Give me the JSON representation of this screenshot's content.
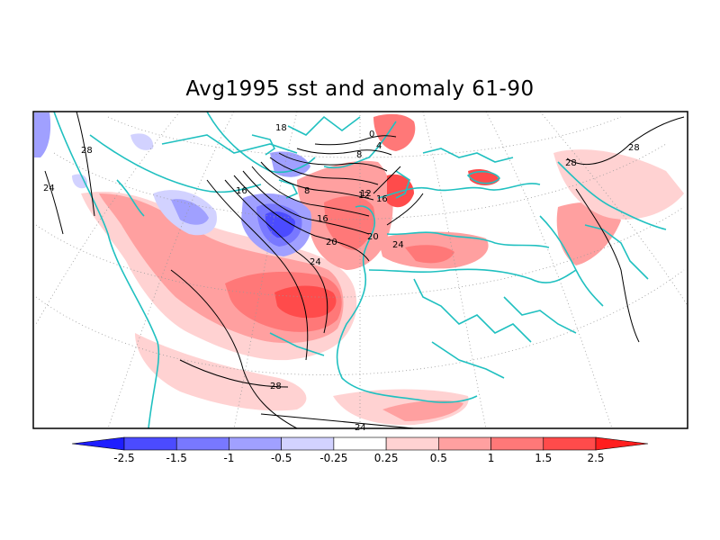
{
  "title": "Avg1995 sst and anomaly 61-90",
  "contour_labels": [
    "28",
    "24",
    "28",
    "28",
    "16",
    "12",
    "8",
    "4",
    "0",
    "8",
    "12",
    "16",
    "20",
    "24",
    "16",
    "20",
    "24",
    "18",
    "28",
    "24",
    "24",
    "28"
  ],
  "colorbar": {
    "tick_labels": [
      "-2.5",
      "-1.5",
      "-1",
      "-0.5",
      "-0.25",
      "0.25",
      "0.5",
      "1",
      "1.5",
      "2.5"
    ],
    "colors": [
      "#1e1eff",
      "#4b4bff",
      "#7878ff",
      "#a0a0ff",
      "#d2d2ff",
      "#ffffff",
      "#ffd2d2",
      "#ffa0a0",
      "#ff7878",
      "#ff4b4b",
      "#ff1e1e"
    ]
  },
  "colors": {
    "coastline": "#20c0c0",
    "contour": "#000000",
    "frame": "#000000"
  }
}
